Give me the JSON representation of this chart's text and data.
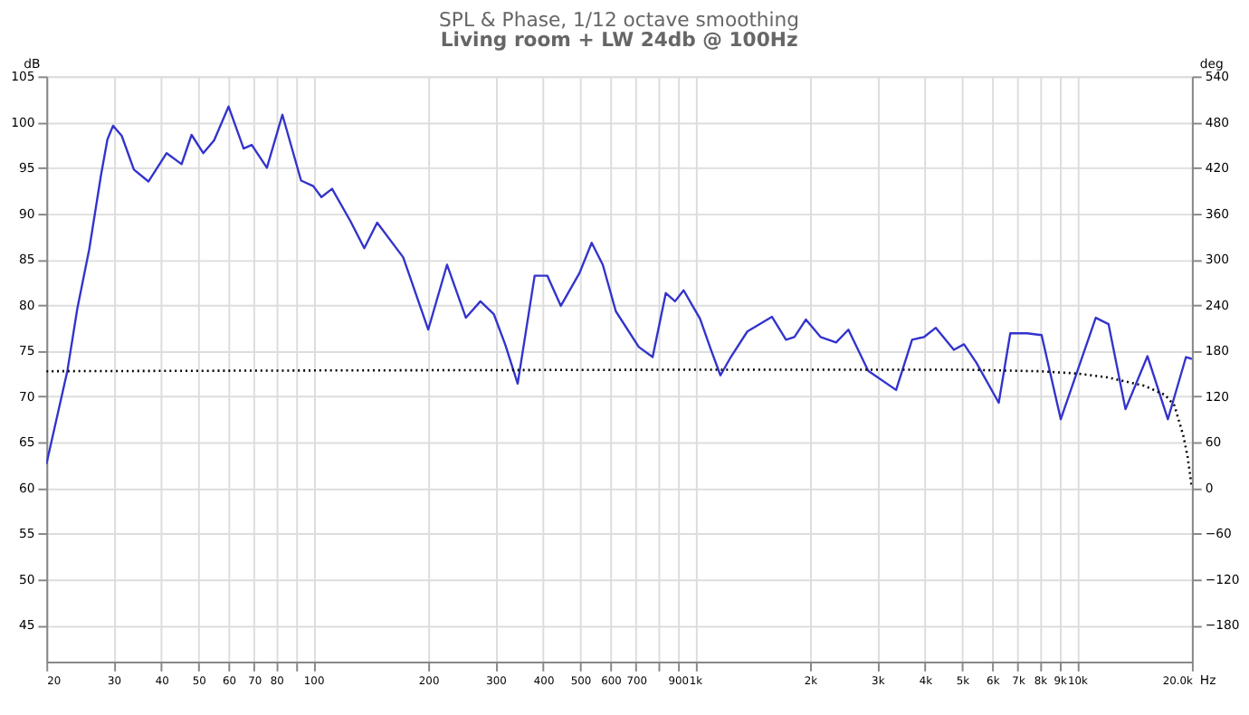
{
  "chart_data": {
    "type": "line",
    "title": "SPL & Phase, 1/12 octave smoothing",
    "subtitle": "Living room + LW 24db @ 100Hz",
    "xlabel": "Hz",
    "ylabel": "dB",
    "y2label": "deg",
    "log": "x",
    "grid": true,
    "xlim": [
      20,
      20000
    ],
    "xticks": [
      20,
      30,
      40,
      50,
      60,
      70,
      80,
      {
        "value": 90,
        "label": null
      },
      100,
      200,
      300,
      400,
      500,
      600,
      700,
      {
        "value": 800,
        "label": null
      },
      900,
      {
        "value": 1000,
        "label": "1k"
      },
      {
        "value": 2000,
        "label": "2k"
      },
      {
        "value": 3000,
        "label": "3k"
      },
      {
        "value": 4000,
        "label": "4k"
      },
      {
        "value": 5000,
        "label": "5k"
      },
      {
        "value": 6000,
        "label": "6k"
      },
      {
        "value": 7000,
        "label": "7k"
      },
      {
        "value": 8000,
        "label": "8k"
      },
      {
        "value": 9000,
        "label": "9k"
      },
      {
        "value": 10000,
        "label": "10k"
      },
      {
        "value": 20000,
        "label": "20.0k"
      }
    ],
    "ylim": [
      41,
      105
    ],
    "yticks": [
      45,
      50,
      55,
      60,
      65,
      70,
      75,
      80,
      85,
      90,
      95,
      100,
      105
    ],
    "y2lim": [
      -228,
      540
    ],
    "y2ticks": [
      -180,
      -120,
      -60,
      0,
      60,
      120,
      180,
      240,
      300,
      360,
      420,
      480,
      540
    ],
    "series": [
      {
        "color": "#3333cc",
        "line_style": "solid",
        "x": [
          20,
          22.7,
          24.1,
          25.9,
          27.8,
          28.9,
          29.9,
          31.5,
          33.9,
          37,
          41.3,
          45.2,
          48,
          51.5,
          55,
          60,
          65.7,
          69,
          75.6,
          83,
          92.9,
          100,
          105,
          112,
          125,
          136,
          147,
          172,
          200,
          224,
          251,
          274,
          297,
          318,
          343,
          380,
          410,
          445,
          498,
          536,
          573,
          620,
          712,
          774,
          838,
          886,
          933,
          1030,
          1100,
          1165,
          1240,
          1370,
          1590,
          1730,
          1820,
          1950,
          2130,
          2340,
          2520,
          2840,
          3360,
          3700,
          3980,
          4270,
          4760,
          5060,
          5450,
          6240,
          6690,
          7400,
          8080,
          9070,
          11200,
          12100,
          13400,
          15300,
          17300,
          19300,
          20000
        ],
        "values": [
          62.6,
          72.8,
          79.6,
          86.1,
          94.2,
          98.1,
          99.6,
          98.5,
          94.8,
          93.5,
          96.6,
          95.4,
          98.6,
          96.6,
          98.0,
          101.7,
          97.1,
          97.5,
          95.0,
          100.8,
          93.6,
          93.0,
          91.8,
          92.7,
          89.2,
          86.2,
          89.0,
          85.2,
          77.3,
          84.4,
          78.6,
          80.4,
          79.0,
          75.7,
          71.4,
          83.2,
          83.2,
          79.9,
          83.5,
          86.8,
          84.4,
          79.3,
          75.4,
          74.3,
          81.3,
          80.4,
          81.6,
          78.5,
          75.1,
          72.3,
          74.3,
          77.1,
          78.7,
          76.2,
          76.5,
          78.4,
          76.5,
          75.9,
          77.3,
          72.8,
          70.7,
          76.2,
          76.5,
          77.5,
          75.1,
          75.7,
          73.7,
          69.3,
          76.9,
          76.9,
          76.7,
          67.5,
          78.6,
          77.9,
          68.6,
          74.4,
          67.5,
          74.3,
          74.1
        ]
      },
      {
        "color": "#000000",
        "line_style": "dotted",
        "axis": "y2",
        "x": [
          20,
          100,
          1000,
          5000,
          8000,
          10000,
          12000,
          15000,
          17000,
          18000,
          19000,
          19500,
          20000
        ],
        "values": [
          153,
          154,
          155,
          155,
          153,
          150,
          145,
          134,
          122,
          108,
          68,
          40,
          0
        ]
      }
    ]
  }
}
